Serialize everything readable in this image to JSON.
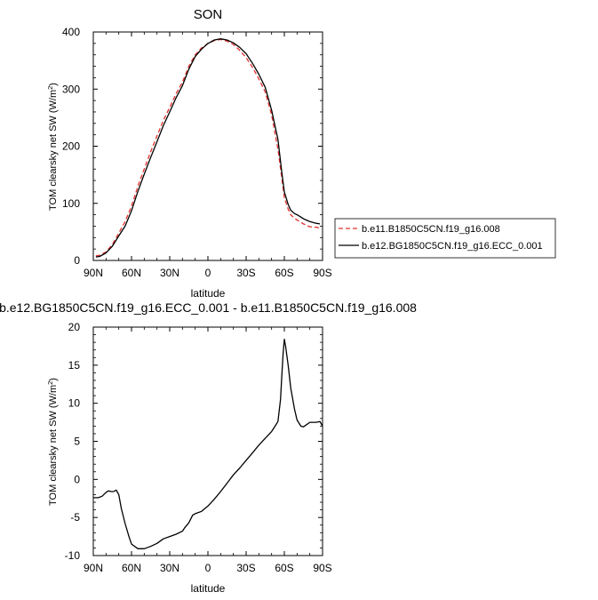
{
  "chart_data": [
    {
      "type": "line",
      "title": "SON",
      "xlabel": "latitude",
      "ylabel": "TOM clearsky net SW (W/m",
      "ylabel_sup": "2",
      "ylabel_end": ")",
      "xlim": [
        90,
        -90
      ],
      "ylim": [
        0,
        400
      ],
      "xticks": [
        90,
        60,
        30,
        0,
        -30,
        -60,
        -90
      ],
      "xtick_labels": [
        "90N",
        "60N",
        "30N",
        "0",
        "30S",
        "60S",
        "90S"
      ],
      "yticks": [
        0,
        100,
        200,
        300,
        400
      ],
      "ytick_labels": [
        "0",
        "100",
        "200",
        "300",
        "400"
      ],
      "legend_position": "right, outside the plot",
      "x": [
        88,
        85,
        80,
        75,
        70,
        65,
        60,
        55,
        50,
        45,
        40,
        35,
        30,
        25,
        20,
        15,
        10,
        5,
        0,
        -5,
        -10,
        -15,
        -20,
        -25,
        -30,
        -35,
        -40,
        -45,
        -50,
        -55,
        -58,
        -60,
        -63,
        -65,
        -68,
        -70,
        -73,
        -75,
        -78,
        -80,
        -85,
        -88
      ],
      "series": [
        {
          "name": "b.e11.B1850C5CN.f19_g16.008",
          "color": "#e0302c",
          "dash": "dashed",
          "values": [
            8,
            9,
            15,
            28,
            48,
            68,
            95,
            130,
            160,
            190,
            218,
            245,
            268,
            292,
            312,
            340,
            360,
            372,
            380,
            385,
            387,
            384,
            378,
            368,
            355,
            338,
            318,
            295,
            255,
            195,
            145,
            110,
            90,
            80,
            74,
            71,
            67,
            64,
            61,
            59,
            58,
            57
          ]
        },
        {
          "name": "b.e12.BG1850C5CN.f19_g16.ECC_0.001",
          "color": "#000000",
          "dash": "solid",
          "values": [
            6,
            7,
            13,
            25,
            43,
            60,
            87,
            121,
            151,
            180,
            208,
            236,
            260,
            285,
            306,
            335,
            357,
            370,
            380,
            386,
            388,
            386,
            381,
            373,
            362,
            345,
            326,
            303,
            263,
            212,
            155,
            120,
            98,
            88,
            82,
            80,
            76,
            73,
            70,
            68,
            65,
            64
          ]
        }
      ]
    },
    {
      "type": "line",
      "title": "b.e12.BG1850C5CN.f19_g16.ECC_0.001 - b.e11.B1850C5CN.f19_g16.008",
      "xlabel": "latitude",
      "ylabel": "TOM clearsky net SW (W/m",
      "ylabel_sup": "2",
      "ylabel_end": ")",
      "xlim": [
        90,
        -90
      ],
      "ylim": [
        -10,
        20
      ],
      "xticks": [
        90,
        60,
        30,
        0,
        -30,
        -60,
        -90
      ],
      "xtick_labels": [
        "90N",
        "60N",
        "30N",
        "0",
        "30S",
        "60S",
        "90S"
      ],
      "yticks": [
        -10,
        -5,
        0,
        5,
        10,
        15,
        20
      ],
      "ytick_labels": [
        "-10",
        "-5",
        "0",
        "5",
        "10",
        "15",
        "20"
      ],
      "x": [
        90,
        86,
        83,
        80,
        78,
        76,
        74,
        72,
        70,
        68,
        65,
        62,
        60,
        55,
        50,
        45,
        40,
        35,
        30,
        25,
        20,
        18,
        15,
        12,
        10,
        5,
        0,
        -5,
        -10,
        -15,
        -20,
        -25,
        -30,
        -35,
        -40,
        -45,
        -50,
        -52,
        -55,
        -57,
        -58,
        -59,
        -60,
        -61,
        -63,
        -65,
        -68,
        -70,
        -73,
        -75,
        -80,
        -85,
        -88,
        -90
      ],
      "series": [
        {
          "name": "",
          "color": "#000000",
          "dash": "solid",
          "values": [
            -2.4,
            -2.4,
            -2.2,
            -1.7,
            -1.5,
            -1.6,
            -1.6,
            -1.4,
            -2.0,
            -3.8,
            -5.8,
            -7.5,
            -8.5,
            -9.1,
            -9.1,
            -8.8,
            -8.4,
            -7.8,
            -7.5,
            -7.2,
            -6.8,
            -6.3,
            -5.7,
            -4.7,
            -4.5,
            -4.2,
            -3.5,
            -2.6,
            -1.6,
            -0.5,
            0.6,
            1.5,
            2.5,
            3.5,
            4.5,
            5.4,
            6.3,
            6.8,
            7.6,
            10.5,
            13.5,
            16.5,
            18.4,
            17.5,
            15.0,
            12.0,
            9.2,
            7.8,
            7.0,
            6.9,
            7.5,
            7.5,
            7.6,
            7.0
          ]
        }
      ]
    }
  ]
}
